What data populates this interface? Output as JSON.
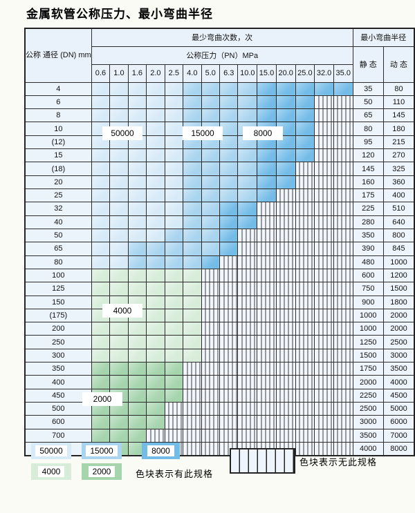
{
  "title": "金属软管公称压力、最小弯曲半径",
  "table": {
    "corner_header": "公称\n通径\n(DN)\nmm",
    "cycles_header": "最少弯曲次数，次",
    "pressure_header": "公称压力（PN）MPa",
    "pressure_values": [
      "0.6",
      "1.0",
      "1.6",
      "2.0",
      "2.5",
      "4.0",
      "5.0",
      "6.3",
      "10.0",
      "15.0",
      "20.0",
      "25.0",
      "32.0",
      "35.0"
    ],
    "radius_header": "最小弯曲半径",
    "static_header": "静 态",
    "dynamic_header": "动 态"
  },
  "shade_colors": {
    "50000": "#d7eaf8",
    "15000": "#a9d4ef",
    "8000": "#74bce8",
    "4000": "#d7ecd9",
    "2000": "#a5d4ad"
  },
  "rows": [
    {
      "dn": "4",
      "static": "35",
      "dynamic": "80",
      "bands": [
        [
          "50000",
          0,
          4
        ],
        [
          "15000",
          5,
          8
        ],
        [
          "8000",
          9,
          13
        ]
      ]
    },
    {
      "dn": "6",
      "static": "50",
      "dynamic": "110",
      "bands": [
        [
          "50000",
          0,
          4
        ],
        [
          "15000",
          5,
          8
        ],
        [
          "8000",
          9,
          11
        ]
      ]
    },
    {
      "dn": "8",
      "static": "65",
      "dynamic": "145",
      "bands": [
        [
          "50000",
          0,
          4
        ],
        [
          "15000",
          5,
          8
        ],
        [
          "8000",
          9,
          11
        ]
      ]
    },
    {
      "dn": "10",
      "static": "80",
      "dynamic": "180",
      "bands": [
        [
          "50000",
          0,
          4
        ],
        [
          "15000",
          5,
          8
        ],
        [
          "8000",
          9,
          11
        ]
      ]
    },
    {
      "dn": "(12)",
      "static": "95",
      "dynamic": "215",
      "bands": [
        [
          "50000",
          0,
          4
        ],
        [
          "15000",
          5,
          8
        ],
        [
          "8000",
          9,
          11
        ]
      ]
    },
    {
      "dn": "15",
      "static": "120",
      "dynamic": "270",
      "bands": [
        [
          "50000",
          0,
          4
        ],
        [
          "15000",
          5,
          8
        ],
        [
          "8000",
          9,
          11
        ]
      ]
    },
    {
      "dn": "(18)",
      "static": "145",
      "dynamic": "325",
      "bands": [
        [
          "50000",
          0,
          4
        ],
        [
          "15000",
          5,
          8
        ],
        [
          "8000",
          9,
          10
        ]
      ]
    },
    {
      "dn": "20",
      "static": "160",
      "dynamic": "360",
      "bands": [
        [
          "50000",
          0,
          4
        ],
        [
          "15000",
          5,
          8
        ],
        [
          "8000",
          9,
          10
        ]
      ]
    },
    {
      "dn": "25",
      "static": "175",
      "dynamic": "400",
      "bands": [
        [
          "50000",
          0,
          4
        ],
        [
          "15000",
          5,
          8
        ],
        [
          "8000",
          9,
          9
        ]
      ]
    },
    {
      "dn": "32",
      "static": "225",
      "dynamic": "510",
      "bands": [
        [
          "50000",
          0,
          4
        ],
        [
          "15000",
          5,
          6
        ],
        [
          "8000",
          7,
          8
        ]
      ]
    },
    {
      "dn": "40",
      "static": "280",
      "dynamic": "640",
      "bands": [
        [
          "50000",
          0,
          4
        ],
        [
          "15000",
          5,
          6
        ],
        [
          "8000",
          7,
          8
        ]
      ]
    },
    {
      "dn": "50",
      "static": "350",
      "dynamic": "800",
      "bands": [
        [
          "50000",
          0,
          3
        ],
        [
          "15000",
          4,
          6
        ],
        [
          "8000",
          7,
          7
        ]
      ]
    },
    {
      "dn": "65",
      "static": "390",
      "dynamic": "845",
      "bands": [
        [
          "50000",
          0,
          1
        ],
        [
          "15000",
          2,
          6
        ],
        [
          "8000",
          7,
          7
        ]
      ]
    },
    {
      "dn": "80",
      "static": "480",
      "dynamic": "1000",
      "bands": [
        [
          "50000",
          0,
          1
        ],
        [
          "15000",
          2,
          5
        ],
        [
          "8000",
          6,
          6
        ]
      ]
    },
    {
      "dn": "100",
      "static": "600",
      "dynamic": "1200",
      "bands": [
        [
          "4000",
          0,
          5
        ]
      ]
    },
    {
      "dn": "125",
      "static": "750",
      "dynamic": "1500",
      "bands": [
        [
          "4000",
          0,
          5
        ]
      ]
    },
    {
      "dn": "150",
      "static": "900",
      "dynamic": "1800",
      "bands": [
        [
          "4000",
          0,
          5
        ]
      ]
    },
    {
      "dn": "(175)",
      "static": "1000",
      "dynamic": "2000",
      "bands": [
        [
          "4000",
          0,
          5
        ]
      ]
    },
    {
      "dn": "200",
      "static": "1000",
      "dynamic": "2000",
      "bands": [
        [
          "4000",
          0,
          5
        ]
      ]
    },
    {
      "dn": "250",
      "static": "1250",
      "dynamic": "2500",
      "bands": [
        [
          "4000",
          0,
          5
        ]
      ]
    },
    {
      "dn": "300",
      "static": "1500",
      "dynamic": "3000",
      "bands": [
        [
          "4000",
          0,
          5
        ]
      ]
    },
    {
      "dn": "350",
      "static": "1750",
      "dynamic": "3500",
      "bands": [
        [
          "2000",
          0,
          4
        ]
      ]
    },
    {
      "dn": "400",
      "static": "2000",
      "dynamic": "4000",
      "bands": [
        [
          "2000",
          0,
          4
        ]
      ]
    },
    {
      "dn": "450",
      "static": "2250",
      "dynamic": "4500",
      "bands": [
        [
          "2000",
          0,
          4
        ]
      ]
    },
    {
      "dn": "500",
      "static": "2500",
      "dynamic": "5000",
      "bands": [
        [
          "2000",
          0,
          3
        ]
      ]
    },
    {
      "dn": "600",
      "static": "3000",
      "dynamic": "6000",
      "bands": [
        [
          "2000",
          0,
          3
        ]
      ]
    },
    {
      "dn": "700",
      "static": "3500",
      "dynamic": "7000",
      "bands": [
        [
          "2000",
          0,
          2
        ]
      ]
    },
    {
      "dn": "800",
      "static": "4000",
      "dynamic": "8000",
      "bands": [
        [
          "2000",
          0,
          2
        ]
      ]
    }
  ],
  "zone_labels": [
    {
      "text": "50000",
      "col_start": 2,
      "col_span": 2,
      "row_boundary": 4
    },
    {
      "text": "15000",
      "col_start": 6,
      "col_span": 2,
      "row_boundary": 4
    },
    {
      "text": "8000",
      "col_start": 9,
      "col_span": 2,
      "row_boundary": 4
    },
    {
      "text": "4000",
      "col_start": 2,
      "col_span": 2,
      "row_boundary": 18
    },
    {
      "text": "2000",
      "col_start": 1,
      "col_span": 2,
      "row_boundary": 25
    }
  ],
  "legend": {
    "row1": [
      {
        "label": "50000",
        "shade": "50000"
      },
      {
        "label": "15000",
        "shade": "15000"
      },
      {
        "label": "8000",
        "shade": "8000"
      }
    ],
    "row2": [
      {
        "label": "4000",
        "shade": "4000"
      },
      {
        "label": "2000",
        "shade": "2000"
      }
    ],
    "has_spec_text": "色块表示有此规格",
    "no_spec_text": "色块表示无此规格"
  }
}
